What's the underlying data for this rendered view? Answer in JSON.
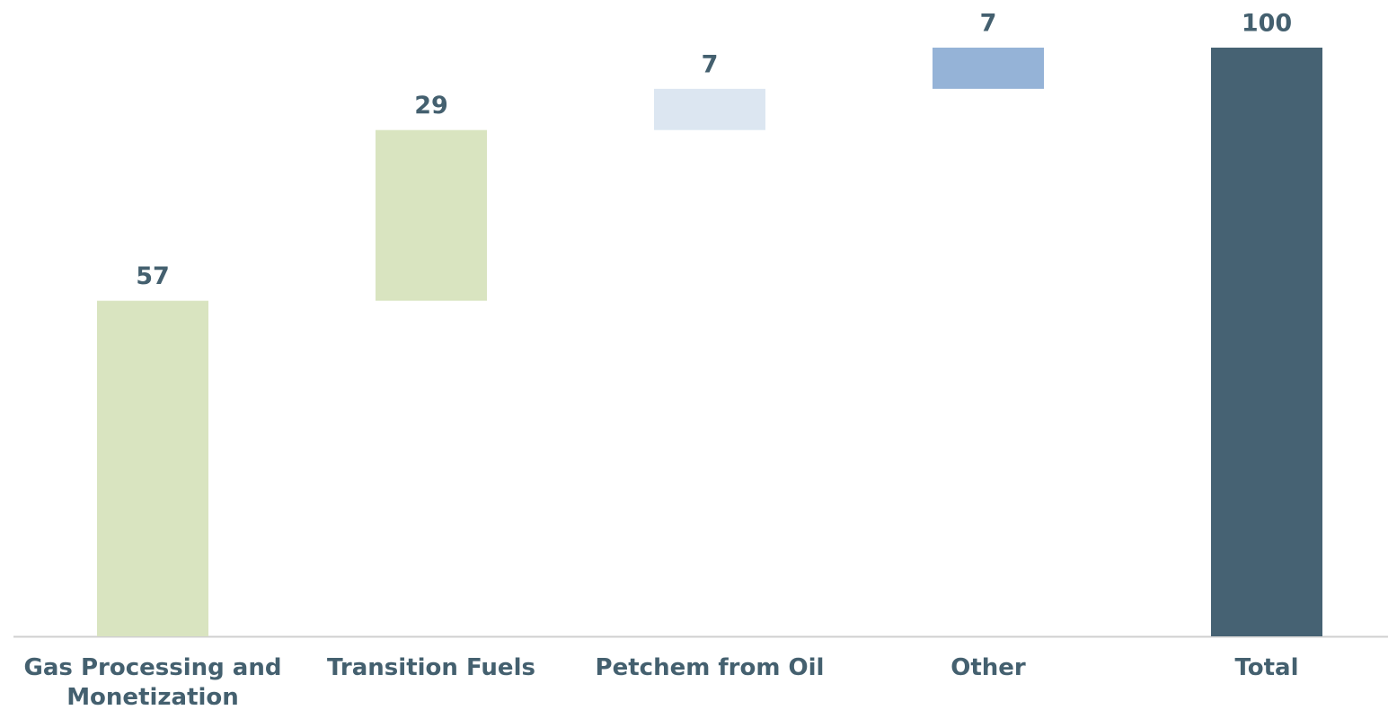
{
  "chart_data": {
    "type": "waterfall",
    "categories": [
      "Gas Processing and Monetization",
      "Transition Fuels",
      "Petchem from Oil",
      "Other",
      "Total"
    ],
    "values": [
      57,
      29,
      7,
      7,
      100
    ],
    "measure": [
      "relative",
      "relative",
      "relative",
      "relative",
      "total"
    ],
    "colors": [
      "#d9e4c0",
      "#d9e4c0",
      "#dce6f1",
      "#95b3d7",
      "#466273"
    ],
    "label_color": "#44606f"
  }
}
